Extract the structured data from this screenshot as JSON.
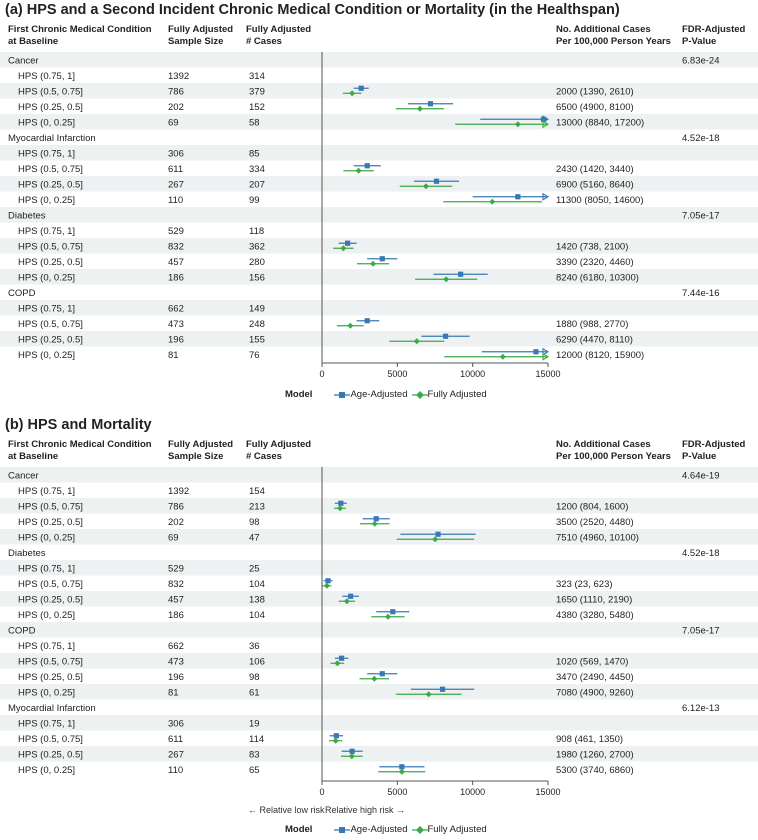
{
  "colors": {
    "age": "#3a78b5",
    "full": "#3aaa46",
    "stripe": "#edf1f1",
    "axis": "#555555",
    "text": "#222222"
  },
  "headers": {
    "condition": [
      "First Chronic Medical Condition",
      "at Baseline"
    ],
    "sample": [
      "Fully Adjusted",
      "Sample Size"
    ],
    "cases": [
      "Fully Adjusted",
      "# Cases"
    ],
    "additional": [
      "No. Additional Cases",
      "Per 100,000 Person Years"
    ],
    "pvalue": [
      "FDR-Adjusted",
      "P-Value"
    ]
  },
  "legend": {
    "title": "Model",
    "age_label": "Age-Adjusted",
    "full_label": "Fully Adjusted"
  },
  "footnotes": {
    "low": "Relative low risk",
    "high": "Relative high risk"
  },
  "panels": [
    {
      "title": "(a) HPS and a Second Incident Chronic Medical Condition or Mortality (in the Healthspan)",
      "xticks": [
        "0",
        "5000",
        "10000",
        "15000"
      ]
    },
    {
      "title": "(b) HPS and Mortality",
      "xticks": [
        "0",
        "5000",
        "10000",
        "15000"
      ]
    }
  ],
  "chart_data": [
    {
      "type": "forest",
      "title": "(a) HPS and a Second Incident Chronic Medical Condition or Mortality (in the Healthspan)",
      "xlim": [
        0,
        15000
      ],
      "xticks": [
        0,
        5000,
        10000,
        15000
      ],
      "groups": [
        {
          "name": "Cancer",
          "pvalue": "6.83e-24",
          "rows": [
            {
              "label": "HPS (0.75, 1]",
              "n": "1392",
              "cases": "314",
              "text": "",
              "age": null,
              "full": null
            },
            {
              "label": "HPS (0.5, 0.75]",
              "n": "786",
              "cases": "379",
              "text": "2000 (1390, 2610)",
              "age": [
                2600,
                2100,
                3100
              ],
              "full": [
                2000,
                1390,
                2610
              ]
            },
            {
              "label": "HPS (0.25, 0.5]",
              "n": "202",
              "cases": "152",
              "text": "6500 (4900, 8100)",
              "age": [
                7200,
                5700,
                8700
              ],
              "full": [
                6500,
                4900,
                8100
              ]
            },
            {
              "label": "HPS (0, 0.25]",
              "n": "69",
              "cases": "58",
              "text": "13000 (8840, 17200)",
              "age": [
                14700,
                10500,
                15000
              ],
              "full": [
                13000,
                8840,
                15000
              ],
              "age_arrow": true,
              "full_arrow": true
            }
          ]
        },
        {
          "name": "Myocardial Infarction",
          "pvalue": "4.52e-18",
          "rows": [
            {
              "label": "HPS (0.75, 1]",
              "n": "306",
              "cases": "85",
              "text": "",
              "age": null,
              "full": null
            },
            {
              "label": "HPS (0.5, 0.75]",
              "n": "611",
              "cases": "334",
              "text": "2430 (1420, 3440)",
              "age": [
                3000,
                2100,
                3900
              ],
              "full": [
                2430,
                1420,
                3440
              ]
            },
            {
              "label": "HPS (0.25, 0.5]",
              "n": "267",
              "cases": "207",
              "text": "6900 (5160, 8640)",
              "age": [
                7600,
                6100,
                9100
              ],
              "full": [
                6900,
                5160,
                8640
              ]
            },
            {
              "label": "HPS (0, 0.25]",
              "n": "110",
              "cases": "99",
              "text": "11300 (8050, 14600)",
              "age": [
                13000,
                10000,
                15000
              ],
              "full": [
                11300,
                8050,
                14600
              ],
              "age_arrow": true
            }
          ]
        },
        {
          "name": "Diabetes",
          "pvalue": "7.05e-17",
          "rows": [
            {
              "label": "HPS (0.75, 1]",
              "n": "529",
              "cases": "118",
              "text": "",
              "age": null,
              "full": null
            },
            {
              "label": "HPS (0.5, 0.75]",
              "n": "832",
              "cases": "362",
              "text": "1420 (738, 2100)",
              "age": [
                1700,
                1100,
                2300
              ],
              "full": [
                1420,
                738,
                2100
              ]
            },
            {
              "label": "HPS (0.25, 0.5]",
              "n": "457",
              "cases": "280",
              "text": "3390 (2320, 4460)",
              "age": [
                4000,
                3000,
                5000
              ],
              "full": [
                3390,
                2320,
                4460
              ]
            },
            {
              "label": "HPS (0, 0.25]",
              "n": "186",
              "cases": "156",
              "text": "8240 (6180, 10300)",
              "age": [
                9200,
                7400,
                11000
              ],
              "full": [
                8240,
                6180,
                10300
              ]
            }
          ]
        },
        {
          "name": "COPD",
          "pvalue": "7.44e-16",
          "rows": [
            {
              "label": "HPS (0.75, 1]",
              "n": "662",
              "cases": "149",
              "text": "",
              "age": null,
              "full": null
            },
            {
              "label": "HPS (0.5, 0.75]",
              "n": "473",
              "cases": "248",
              "text": "1880 (988, 2770)",
              "age": [
                3000,
                2300,
                3800
              ],
              "full": [
                1880,
                988,
                2770
              ]
            },
            {
              "label": "HPS (0.25, 0.5]",
              "n": "196",
              "cases": "155",
              "text": "6290 (4470, 8110)",
              "age": [
                8200,
                6600,
                9800
              ],
              "full": [
                6290,
                4470,
                8110
              ]
            },
            {
              "label": "HPS (0, 0.25]",
              "n": "81",
              "cases": "76",
              "text": "12000 (8120, 15900)",
              "age": [
                14200,
                10600,
                15000
              ],
              "full": [
                12000,
                8120,
                15000
              ],
              "age_arrow": true,
              "full_arrow": true
            }
          ]
        }
      ]
    },
    {
      "type": "forest",
      "title": "(b) HPS and Mortality",
      "xlim": [
        0,
        15000
      ],
      "xticks": [
        0,
        5000,
        10000,
        15000
      ],
      "groups": [
        {
          "name": "Cancer",
          "pvalue": "4.64e-19",
          "rows": [
            {
              "label": "HPS (0.75, 1]",
              "n": "1392",
              "cases": "154",
              "text": "",
              "age": null,
              "full": null
            },
            {
              "label": "HPS (0.5, 0.75]",
              "n": "786",
              "cases": "213",
              "text": "1200 (804, 1600)",
              "age": [
                1250,
                850,
                1650
              ],
              "full": [
                1200,
                804,
                1600
              ]
            },
            {
              "label": "HPS (0.25, 0.5]",
              "n": "202",
              "cases": "98",
              "text": "3500 (2520, 4480)",
              "age": [
                3600,
                2700,
                4500
              ],
              "full": [
                3500,
                2520,
                4480
              ]
            },
            {
              "label": "HPS (0, 0.25]",
              "n": "69",
              "cases": "47",
              "text": "7510 (4960, 10100)",
              "age": [
                7700,
                5200,
                10200
              ],
              "full": [
                7510,
                4960,
                10100
              ]
            }
          ]
        },
        {
          "name": "Diabetes",
          "pvalue": "4.52e-18",
          "rows": [
            {
              "label": "HPS (0.75, 1]",
              "n": "529",
              "cases": "25",
              "text": "",
              "age": null,
              "full": null
            },
            {
              "label": "HPS (0.5, 0.75]",
              "n": "832",
              "cases": "104",
              "text": "323 (23, 623)",
              "age": [
                400,
                100,
                700
              ],
              "full": [
                323,
                23,
                623
              ]
            },
            {
              "label": "HPS (0.25, 0.5]",
              "n": "457",
              "cases": "138",
              "text": "1650 (1110, 2190)",
              "age": [
                1900,
                1350,
                2450
              ],
              "full": [
                1650,
                1110,
                2190
              ]
            },
            {
              "label": "HPS (0, 0.25]",
              "n": "186",
              "cases": "104",
              "text": "4380 (3280, 5480)",
              "age": [
                4700,
                3600,
                5800
              ],
              "full": [
                4380,
                3280,
                5480
              ]
            }
          ]
        },
        {
          "name": "COPD",
          "pvalue": "7.05e-17",
          "rows": [
            {
              "label": "HPS (0.75, 1]",
              "n": "662",
              "cases": "36",
              "text": "",
              "age": null,
              "full": null
            },
            {
              "label": "HPS (0.5, 0.75]",
              "n": "473",
              "cases": "106",
              "text": "1020 (569, 1470)",
              "age": [
                1300,
                850,
                1750
              ],
              "full": [
                1020,
                569,
                1470
              ]
            },
            {
              "label": "HPS (0.25, 0.5]",
              "n": "196",
              "cases": "98",
              "text": "3470 (2490, 4450)",
              "age": [
                4000,
                3000,
                5000
              ],
              "full": [
                3470,
                2490,
                4450
              ]
            },
            {
              "label": "HPS (0, 0.25]",
              "n": "81",
              "cases": "61",
              "text": "7080 (4900, 9260)",
              "age": [
                8000,
                5900,
                10100
              ],
              "full": [
                7080,
                4900,
                9260
              ]
            }
          ]
        },
        {
          "name": "Myocardial Infarction",
          "pvalue": "6.12e-13",
          "rows": [
            {
              "label": "HPS (0.75, 1]",
              "n": "306",
              "cases": "19",
              "text": "",
              "age": null,
              "full": null
            },
            {
              "label": "HPS (0.5, 0.75]",
              "n": "611",
              "cases": "114",
              "text": "908 (461, 1350)",
              "age": [
                950,
                500,
                1400
              ],
              "full": [
                908,
                461,
                1350
              ]
            },
            {
              "label": "HPS (0.25, 0.5]",
              "n": "267",
              "cases": "83",
              "text": "1980 (1260, 2700)",
              "age": [
                2000,
                1300,
                2700
              ],
              "full": [
                1980,
                1260,
                2700
              ]
            },
            {
              "label": "HPS (0, 0.25]",
              "n": "110",
              "cases": "65",
              "text": "5300 (3740, 6860)",
              "age": [
                5300,
                3800,
                6800
              ],
              "full": [
                5300,
                3740,
                6860
              ]
            }
          ]
        }
      ]
    }
  ]
}
